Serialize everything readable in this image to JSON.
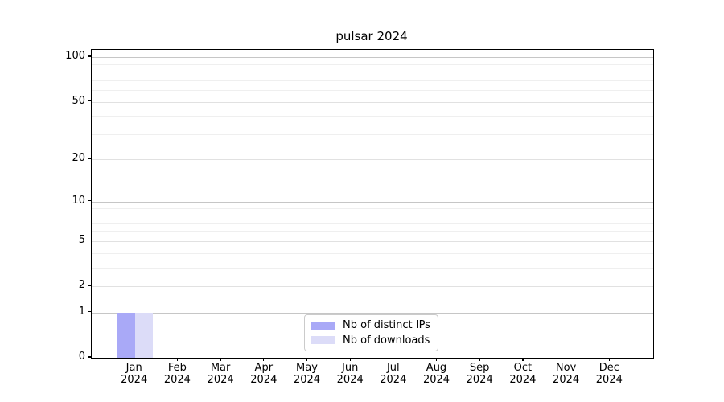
{
  "chart_data": {
    "type": "bar",
    "title": "pulsar 2024",
    "x": {
      "categories": [
        {
          "month": "Jan",
          "year": "2024"
        },
        {
          "month": "Feb",
          "year": "2024"
        },
        {
          "month": "Mar",
          "year": "2024"
        },
        {
          "month": "Apr",
          "year": "2024"
        },
        {
          "month": "May",
          "year": "2024"
        },
        {
          "month": "Jun",
          "year": "2024"
        },
        {
          "month": "Jul",
          "year": "2024"
        },
        {
          "month": "Aug",
          "year": "2024"
        },
        {
          "month": "Sep",
          "year": "2024"
        },
        {
          "month": "Oct",
          "year": "2024"
        },
        {
          "month": "Nov",
          "year": "2024"
        },
        {
          "month": "Dec",
          "year": "2024"
        }
      ]
    },
    "y_axis": {
      "scale": "log10(1+y)",
      "ticks": [
        0,
        1,
        2,
        5,
        10,
        20,
        50,
        100
      ],
      "major_gridline_values": [
        1,
        10,
        100
      ],
      "mid_gridline_values": [
        2,
        5,
        20,
        50
      ],
      "minor_gridline_values": [
        3,
        4,
        6,
        7,
        8,
        9,
        30,
        40,
        60,
        70,
        80,
        90
      ],
      "ymax": 112
    },
    "series": [
      {
        "name": "Nb of distinct IPs",
        "color": "#a9a9f7",
        "values": [
          1,
          0,
          0,
          0,
          0,
          0,
          0,
          0,
          0,
          0,
          0,
          0
        ]
      },
      {
        "name": "Nb of downloads",
        "color": "#dcdcf8",
        "values": [
          1,
          0,
          0,
          0,
          0,
          0,
          0,
          0,
          0,
          0,
          0,
          0
        ]
      }
    ],
    "legend": {
      "position": "inside-bottom-center"
    },
    "grid": "both",
    "colors": {
      "major_grid": "#c6c6c6",
      "mid_grid": "#e1e1e1",
      "minor_grid": "#efefef",
      "spine": "#000000",
      "legend_border": "#cbcbcb",
      "text": "#000000",
      "background": "#ffffff"
    }
  }
}
